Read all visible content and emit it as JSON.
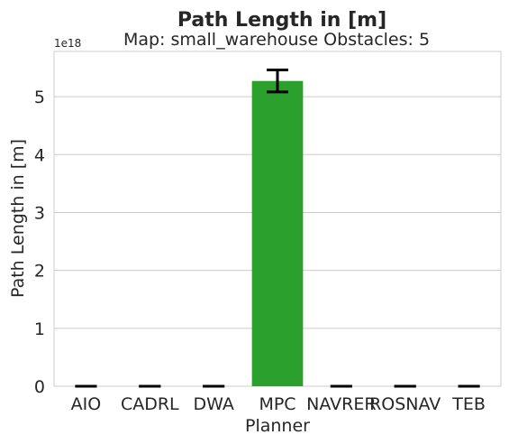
{
  "chart_data": {
    "type": "bar",
    "title": "Path Length in [m]",
    "subtitle": "Map: small_warehouse Obstacles: 5",
    "xlabel": "Planner",
    "ylabel": "Path Length in [m]",
    "y_offset_label": "1e18",
    "categories": [
      "AIO",
      "CADRL",
      "DWA",
      "MPC",
      "NAVRER",
      "ROSNAV",
      "TEB"
    ],
    "values": [
      0,
      0,
      0,
      5.27,
      0,
      0,
      0
    ],
    "error_low": [
      0,
      0,
      0,
      5.08,
      0,
      0,
      0
    ],
    "error_high": [
      0,
      0,
      0,
      5.46,
      0,
      0,
      0
    ],
    "ylim": [
      0,
      5.78
    ],
    "yticks": [
      0,
      1,
      2,
      3,
      4,
      5
    ],
    "grid": true,
    "bar_colors": [
      "#1f77b4",
      "#ff7f0e",
      "#2ca02c",
      "#2ca02c",
      "#9467bd",
      "#8c564b",
      "#e377c2"
    ],
    "errorbar_color": "#000000",
    "grid_color": "#cccccc"
  }
}
